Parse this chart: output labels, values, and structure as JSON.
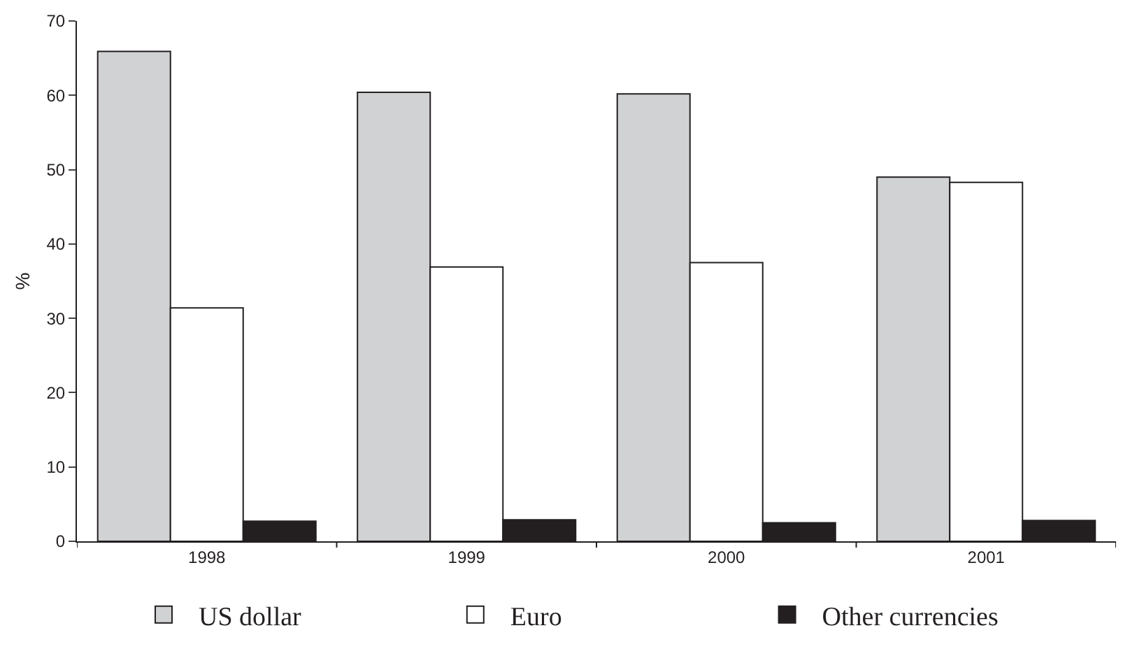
{
  "chart_data": {
    "type": "bar",
    "ylabel": "%",
    "categories": [
      "1998",
      "1999",
      "2000",
      "2001"
    ],
    "series": [
      {
        "name": "US dollar",
        "color": "#d1d2d4",
        "values": [
          65.9,
          60.4,
          60.2,
          49.0
        ]
      },
      {
        "name": "Euro",
        "color": "#ffffff",
        "values": [
          31.4,
          36.9,
          37.5,
          48.3
        ]
      },
      {
        "name": "Other currencies",
        "color": "#231f20",
        "values": [
          2.7,
          2.9,
          2.5,
          2.8
        ]
      }
    ],
    "ylim": [
      0,
      70
    ],
    "yticks": [
      0,
      10,
      20,
      30,
      40,
      50,
      60,
      70
    ],
    "legend": "bottom"
  }
}
